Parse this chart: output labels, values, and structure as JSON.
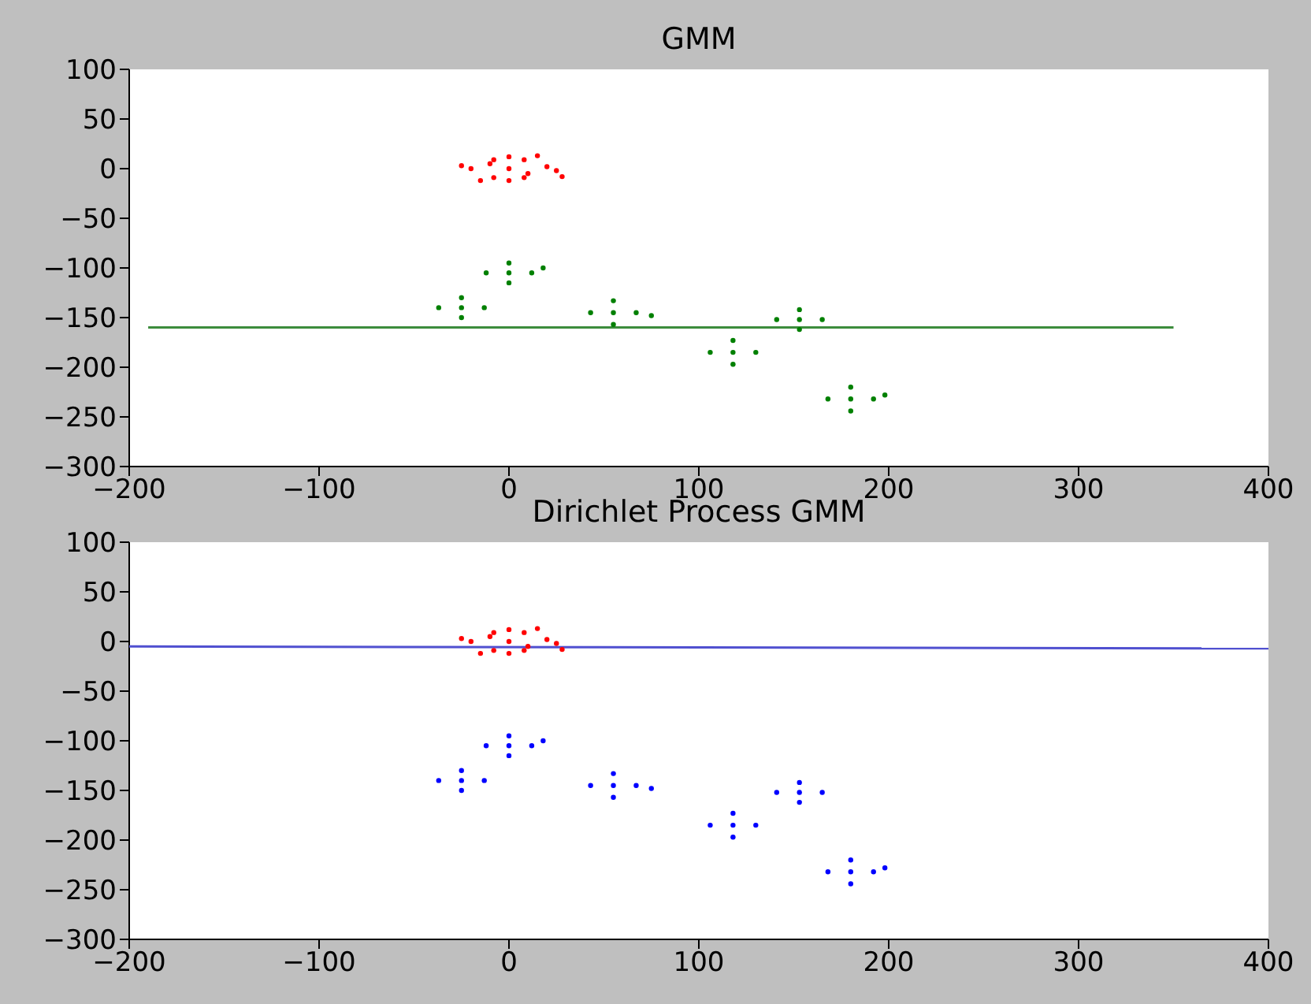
{
  "chart_data": [
    {
      "type": "scatter",
      "title": "GMM",
      "xlim": [
        -200,
        400
      ],
      "xticks": [
        -200,
        -100,
        0,
        100,
        200,
        300,
        400
      ],
      "ylim": [
        -300,
        100
      ],
      "yticks": [
        -300,
        -250,
        -200,
        -150,
        -100,
        -50,
        0,
        50,
        100
      ],
      "grid": false,
      "marker": "circle",
      "series": [
        {
          "color": "#ff0000",
          "x": [
            0,
            -10,
            10,
            -20,
            20,
            -25,
            25,
            0,
            0,
            -8,
            8,
            -8,
            8,
            28,
            -15,
            15
          ],
          "values": [
            0,
            5,
            -5,
            0,
            2,
            3,
            -2,
            12,
            -12,
            9,
            9,
            -9,
            -9,
            -8,
            -12,
            13
          ]
        },
        {
          "color": "#008000",
          "x": [
            0,
            -12,
            12,
            0,
            0,
            18,
            -25,
            -37,
            -13,
            -25,
            -25,
            55,
            43,
            67,
            55,
            55,
            75,
            118,
            106,
            130,
            118,
            118,
            153,
            141,
            165,
            153,
            153,
            180,
            168,
            192,
            180,
            180,
            198
          ],
          "values": [
            -105,
            -105,
            -105,
            -95,
            -115,
            -100,
            -140,
            -140,
            -140,
            -130,
            -150,
            -145,
            -145,
            -145,
            -133,
            -157,
            -148,
            -185,
            -185,
            -185,
            -173,
            -197,
            -152,
            -152,
            -152,
            -142,
            -162,
            -232,
            -232,
            -232,
            -220,
            -244,
            -228
          ]
        },
        {
          "type": "line",
          "marker": "none",
          "color": "#3c8c3c",
          "x": [
            -190,
            350
          ],
          "values": [
            -160,
            -160
          ]
        }
      ]
    },
    {
      "type": "scatter",
      "title": "Dirichlet Process GMM",
      "xlim": [
        -200,
        400
      ],
      "xticks": [
        -200,
        -100,
        0,
        100,
        200,
        300,
        400
      ],
      "ylim": [
        -300,
        100
      ],
      "yticks": [
        -300,
        -250,
        -200,
        -150,
        -100,
        -50,
        0,
        50,
        100
      ],
      "grid": false,
      "marker": "circle",
      "series": [
        {
          "color": "#ff0000",
          "x": [
            0,
            -10,
            10,
            -20,
            20,
            -25,
            25,
            0,
            0,
            -8,
            8,
            -8,
            8,
            28,
            -15,
            15
          ],
          "values": [
            0,
            5,
            -5,
            0,
            2,
            3,
            -2,
            12,
            -12,
            9,
            9,
            -9,
            -9,
            -8,
            -12,
            13
          ]
        },
        {
          "color": "#0000ff",
          "x": [
            0,
            -12,
            12,
            0,
            0,
            18,
            -25,
            -37,
            -13,
            -25,
            -25,
            55,
            43,
            67,
            55,
            55,
            75,
            118,
            106,
            130,
            118,
            118,
            153,
            141,
            165,
            153,
            153,
            180,
            168,
            192,
            180,
            180,
            198
          ],
          "values": [
            -105,
            -105,
            -105,
            -95,
            -115,
            -100,
            -140,
            -140,
            -140,
            -130,
            -150,
            -145,
            -145,
            -145,
            -133,
            -157,
            -148,
            -185,
            -185,
            -185,
            -173,
            -197,
            -152,
            -152,
            -152,
            -142,
            -162,
            -232,
            -232,
            -232,
            -220,
            -244,
            -228
          ]
        },
        {
          "type": "line",
          "marker": "none",
          "color": "#5050d0",
          "x": [
            -200,
            400
          ],
          "values": [
            -5,
            -7
          ]
        }
      ]
    }
  ]
}
